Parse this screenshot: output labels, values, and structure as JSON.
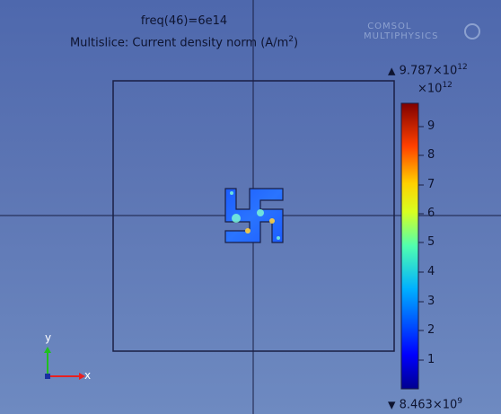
{
  "title": {
    "line1": "freq(46)=6e14",
    "line2_prefix": "Multislice: Current density norm (A/m",
    "line2_exp": "2",
    "line2_suffix": ")"
  },
  "watermark": {
    "line1": "COMSOL",
    "line2": "MULTIPHYSICS"
  },
  "colorbar": {
    "max_label": "9.787×10",
    "max_exp": "12",
    "scale_label": "×10",
    "scale_exp": "12",
    "min_label": "8.463×10",
    "min_exp": "9",
    "ticks": [
      "9",
      "8",
      "7",
      "6",
      "5",
      "4",
      "3",
      "2",
      "1"
    ],
    "up_marker": "▲",
    "down_marker": "▼"
  },
  "axes": {
    "x": "x",
    "y": "y"
  },
  "colors": {
    "background_top": "#4e68ad",
    "background_bottom": "#6e8ac1",
    "geometry": "#1a1f44",
    "x_axis": "#e82020",
    "y_axis": "#20c020"
  }
}
